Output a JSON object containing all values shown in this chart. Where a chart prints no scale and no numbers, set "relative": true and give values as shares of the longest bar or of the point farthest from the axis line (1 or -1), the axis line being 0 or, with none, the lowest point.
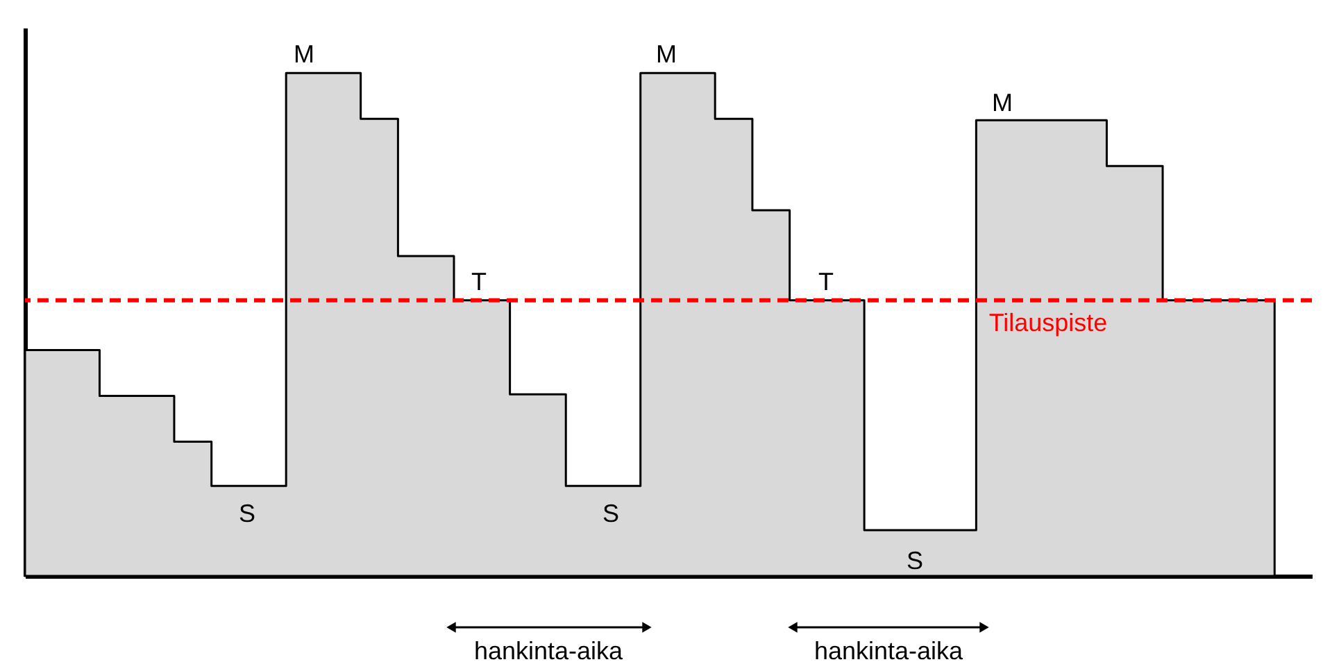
{
  "chart_data": {
    "type": "area",
    "relative": true,
    "color": "#d9d9d9",
    "categories": [
      null,
      null,
      null,
      null,
      null,
      null,
      null,
      null,
      null,
      null,
      null,
      null,
      null,
      null,
      null,
      null,
      null,
      null,
      null,
      null,
      null,
      null,
      null,
      null,
      null,
      null,
      null,
      null,
      null,
      null,
      null,
      null,
      null,
      null,
      null,
      null,
      null,
      null,
      null,
      null,
      null,
      null,
      null,
      null,
      null,
      null,
      null,
      null,
      null,
      null,
      null,
      null,
      null,
      null,
      null,
      null,
      null,
      null,
      null,
      null,
      null,
      null,
      null,
      null,
      null,
      null,
      null,
      null,
      null,
      null
    ],
    "values": [
      0.449,
      0.449,
      0.449,
      0.449,
      0.358,
      0.358,
      0.358,
      0.358,
      0.267,
      0.267,
      0.179,
      0.179,
      0.179,
      0.179,
      1,
      1,
      1,
      1,
      0.909,
      0.909,
      0.636,
      0.636,
      0.636,
      0.548,
      0.548,
      0.548,
      0.361,
      0.361,
      0.361,
      0.179,
      0.179,
      0.179,
      0.179,
      1,
      1,
      1,
      1,
      0.909,
      0.909,
      0.727,
      0.727,
      0.548,
      0.548,
      0.548,
      0.548,
      0.091,
      0.091,
      0.091,
      0.091,
      0.091,
      0.091,
      0.906,
      0.906,
      0.906,
      0.906,
      0.906,
      0.906,
      0.906,
      0.815,
      0.815,
      0.815,
      0.548,
      0.548,
      0.548,
      0.548,
      0.548,
      0.548,
      0.548,
      null,
      null
    ],
    "tick_labels": false,
    "ref_lines": [
      {
        "axis": "y",
        "value": 0.548,
        "label": "Tilauspiste",
        "color": "#ff0000",
        "line_style": "dashed"
      }
    ],
    "annotations": [
      "M",
      "M",
      "M",
      "T",
      "T",
      "S",
      "S",
      "S",
      "hankinta-aika",
      "hankinta-aika"
    ]
  }
}
